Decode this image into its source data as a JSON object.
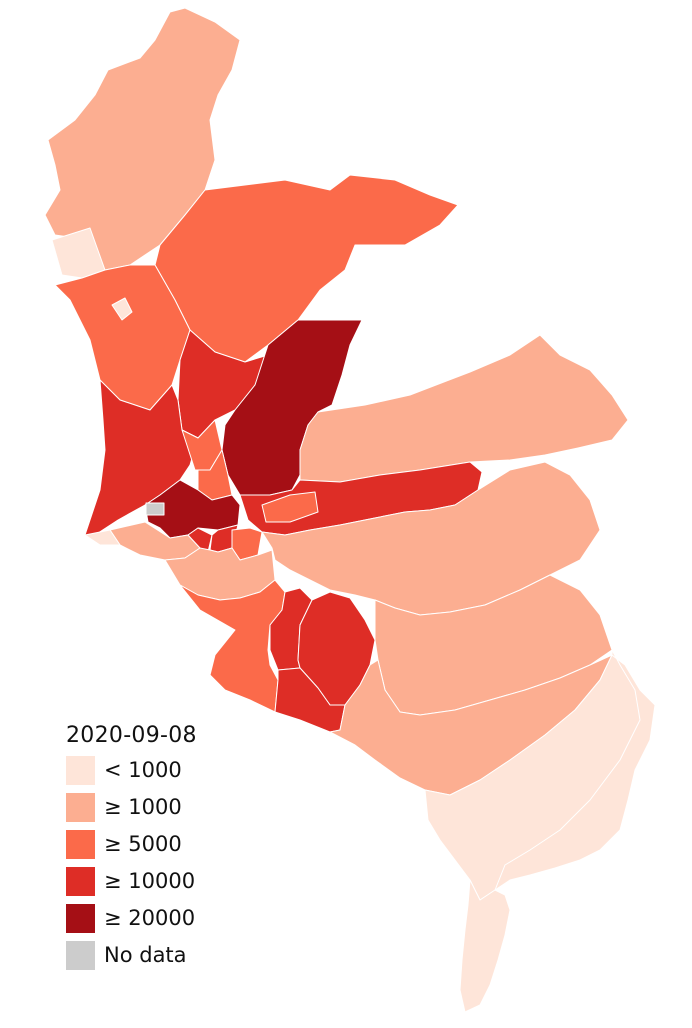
{
  "legend": {
    "title": "2020-09-08",
    "items": [
      {
        "label": "< 1000",
        "color": "#fee5d9"
      },
      {
        "label": "≥ 1000",
        "color": "#fcae91"
      },
      {
        "label": "≥ 5000",
        "color": "#fb6a4a"
      },
      {
        "label": "≥ 10000",
        "color": "#de2d26"
      },
      {
        "label": "≥ 20000",
        "color": "#a50f15"
      },
      {
        "label": "No data",
        "color": "#cccccc"
      }
    ]
  },
  "colors": {
    "lt1000": "#fee5d9",
    "ge1000": "#fcae91",
    "ge5000": "#fb6a4a",
    "ge10000": "#de2d26",
    "ge20000": "#a50f15",
    "nodata": "#cccccc"
  }
}
